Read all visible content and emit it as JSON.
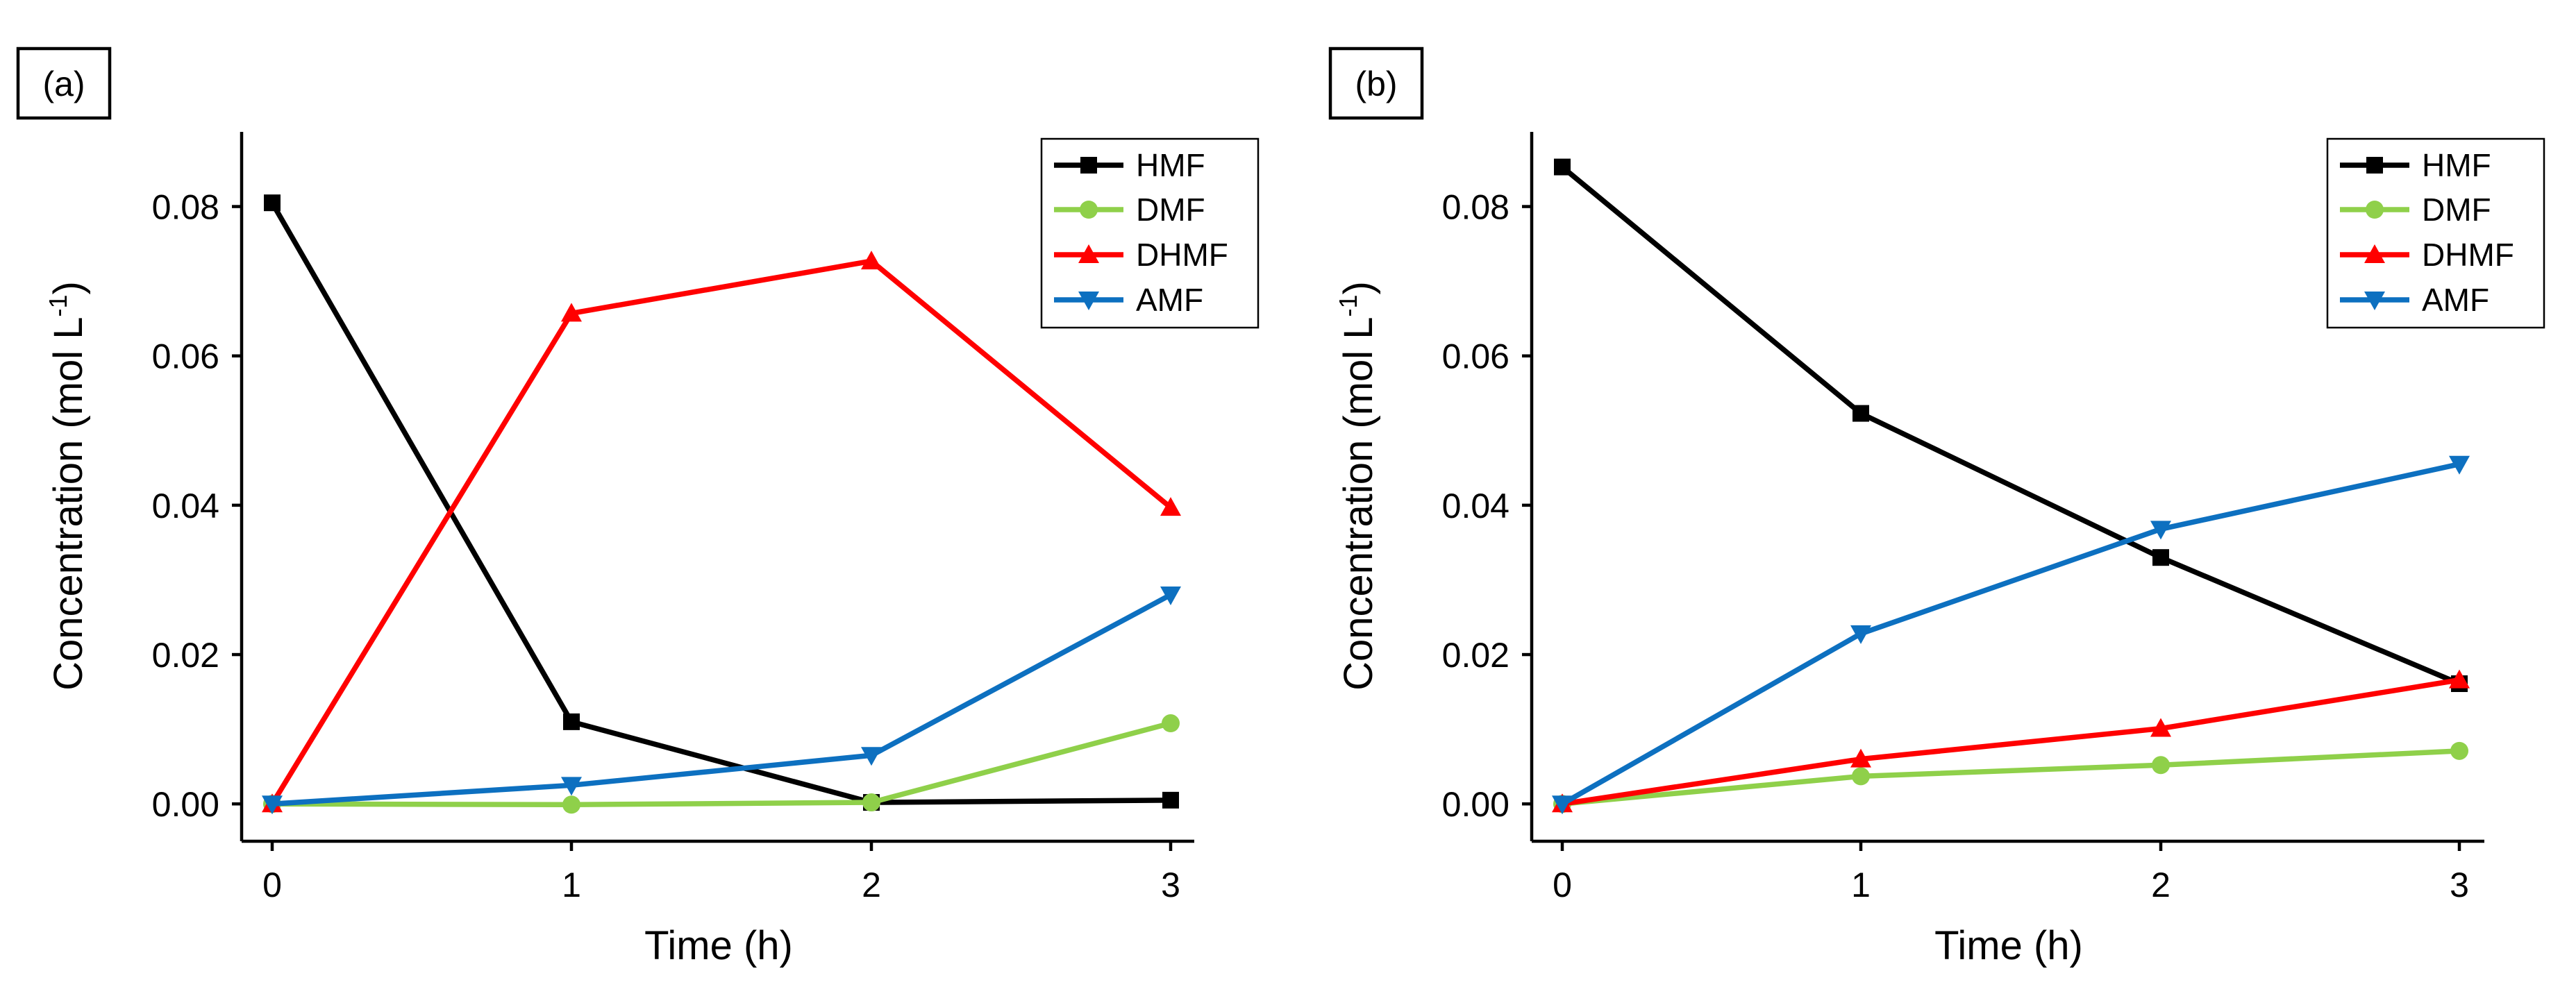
{
  "colors": {
    "HMF": "#000000",
    "DMF": "#8fd04a",
    "DHMF": "#ff0000",
    "AMF": "#0d70c0"
  },
  "chart_data": [
    {
      "type": "line",
      "panel_label": "(a)",
      "xlabel": "Time (h)",
      "ylabel": "Concentration (mol L",
      "ylabel_superscript": "-1",
      "ylabel_suffix": ")",
      "x": [
        0,
        1,
        2,
        3
      ],
      "xlim": [
        -0.05,
        3.1
      ],
      "ylim": [
        -0.005,
        0.09
      ],
      "x_ticks": [
        0,
        1,
        2,
        3
      ],
      "x_tick_labels": [
        "0",
        "1",
        "2",
        "3"
      ],
      "y_ticks": [
        0,
        0.02,
        0.04,
        0.06,
        0.08
      ],
      "y_tick_labels": [
        "0.00",
        "0.02",
        "0.04",
        "0.06",
        "0.08"
      ],
      "legend_position": "top-right",
      "series": [
        {
          "name": "HMF",
          "marker": "square",
          "values": [
            0.0805,
            0.011,
            0.0002,
            0.0005
          ]
        },
        {
          "name": "DMF",
          "marker": "circle",
          "values": [
            0.0,
            -0.0001,
            0.0002,
            0.0108
          ]
        },
        {
          "name": "DHMF",
          "marker": "triangle-up",
          "values": [
            0.0,
            0.0657,
            0.0727,
            0.0397
          ]
        },
        {
          "name": "AMF",
          "marker": "triangle-down",
          "values": [
            0.0,
            0.0025,
            0.0065,
            0.028
          ]
        }
      ]
    },
    {
      "type": "line",
      "panel_label": "(b)",
      "xlabel": "Time (h)",
      "ylabel": "Concentration (mol L",
      "ylabel_superscript": "-1",
      "ylabel_suffix": ")",
      "x": [
        0,
        1,
        2,
        3
      ],
      "xlim": [
        -0.05,
        3.1
      ],
      "ylim": [
        -0.005,
        0.09
      ],
      "x_ticks": [
        0,
        1,
        2,
        3
      ],
      "x_tick_labels": [
        "0",
        "1",
        "2",
        "3"
      ],
      "y_ticks": [
        0,
        0.02,
        0.04,
        0.06,
        0.08
      ],
      "y_tick_labels": [
        "0.00",
        "0.02",
        "0.04",
        "0.06",
        "0.08"
      ],
      "legend_position": "top-right",
      "series": [
        {
          "name": "HMF",
          "marker": "square",
          "values": [
            0.0853,
            0.0523,
            0.033,
            0.0161
          ]
        },
        {
          "name": "DMF",
          "marker": "circle",
          "values": [
            0.0,
            0.0037,
            0.0052,
            0.0071
          ]
        },
        {
          "name": "DHMF",
          "marker": "triangle-up",
          "values": [
            0.0,
            0.006,
            0.0101,
            0.0166
          ]
        },
        {
          "name": "AMF",
          "marker": "triangle-down",
          "values": [
            0.0,
            0.0228,
            0.0368,
            0.0455
          ]
        }
      ]
    }
  ]
}
